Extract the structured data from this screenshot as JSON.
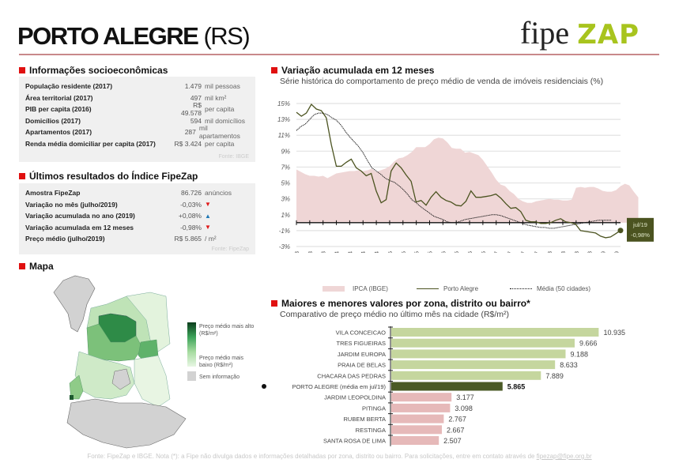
{
  "header": {
    "city": "PORTO ALEGRE",
    "state": "(RS)",
    "logo_left": "fipe",
    "logo_right": "ZAP"
  },
  "socio": {
    "title": "Informações socioeconômicas",
    "rows": [
      {
        "label": "População residente (2017)",
        "value": "1.479",
        "unit": "mil pessoas"
      },
      {
        "label": "Área territorial (2017)",
        "value": "497",
        "unit": "mil km²"
      },
      {
        "label": "PIB per capita (2016)",
        "value": "R$ 49.578",
        "unit": "per capita"
      },
      {
        "label": "Domicílios (2017)",
        "value": "594",
        "unit": "mil domicílios"
      },
      {
        "label": "Apartamentos (2017)",
        "value": "287",
        "unit": "mil apartamentos"
      },
      {
        "label": "Renda média domiciliar per capita (2017)",
        "value": "R$ 3.424",
        "unit": "per capita"
      }
    ],
    "source": "Fonte: IBGE"
  },
  "index": {
    "title": "Últimos resultados do Índice FipeZap",
    "rows": [
      {
        "label": "Amostra FipeZap",
        "value": "86.726",
        "unit": "anúncios",
        "trend": ""
      },
      {
        "label": "Variação no mês (julho/2019)",
        "value": "-0,03%",
        "unit": "",
        "trend": "down"
      },
      {
        "label": "Variação acumulada no ano (2019)",
        "value": "+0,08%",
        "unit": "",
        "trend": "up"
      },
      {
        "label": "Variação acumulada em 12 meses",
        "value": "-0,98%",
        "unit": "",
        "trend": "down"
      },
      {
        "label": "Preço médio (julho/2019)",
        "value": "R$ 5.865",
        "unit": "/ m²",
        "trend": ""
      }
    ],
    "source": "Fonte: FipeZap",
    "colors": {
      "down": "#e01818",
      "up": "#1f77b4"
    }
  },
  "map": {
    "title": "Mapa",
    "legend_high": "Preço médio mais alto (R$/m²)",
    "legend_low": "Preço médio mais baixo (R$/m²)",
    "legend_none": "Sem informação"
  },
  "line_section": {
    "title": "Variação acumulada em 12 meses",
    "subtitle": "Série histórica do comportamento de preço médio de venda de imóveis residenciais (%)"
  },
  "bar_section": {
    "title": "Maiores e menores valores por zona, distrito ou bairro*",
    "subtitle": "Comparativo de preço médio no último mês na cidade (R$/m²)"
  },
  "footer": {
    "text": "Fonte: FipeZap e IBGE. Nota (*): a Fipe não divulga dados e informações detalhadas por zona, distrito ou bairro. Para solicitações, entre em contato através de ",
    "email": "fipezap@fipe.org.br"
  },
  "chart_data": [
    {
      "type": "line",
      "title": "Variação acumulada em 12 meses",
      "subtitle": "Série histórica do comportamento de preço médio de venda de imóveis residenciais (%)",
      "ylabel": "%",
      "ylim": [
        -3,
        15
      ],
      "yticks": [
        "15%",
        "13%",
        "11%",
        "9%",
        "7%",
        "5%",
        "3%",
        "1%",
        "-1%",
        "-3%"
      ],
      "ytick_values": [
        15,
        13,
        11,
        9,
        7,
        5,
        3,
        1,
        -1,
        -3
      ],
      "xticks": [
        "jun/13",
        "set/13",
        "dez/13",
        "mar/14",
        "jun/14",
        "set/14",
        "dez/14",
        "mar/15",
        "jun/15",
        "set/15",
        "dez/15",
        "mar/16",
        "jun/16",
        "set/16",
        "dez/16",
        "mar/17",
        "jun/17",
        "set/17",
        "dez/17",
        "mar/18",
        "jun/18",
        "set/18",
        "dez/18",
        "mar/19",
        "jun/19"
      ],
      "x_start": "jun/13",
      "x_end": "jul/19",
      "grid": true,
      "legend_position": "bottom",
      "series": [
        {
          "name": "IPCA (IBGE)",
          "kind": "area",
          "color": "#efd6d6",
          "values": [
            6.7,
            6.4,
            6.1,
            5.9,
            5.9,
            5.8,
            5.9,
            5.6,
            5.9,
            6.2,
            6.3,
            6.4,
            6.5,
            6.5,
            6.6,
            6.5,
            6.6,
            6.8,
            6.4,
            6.6,
            6.8,
            7.1,
            7.7,
            8.1,
            8.2,
            8.5,
            8.9,
            9.5,
            9.5,
            9.5,
            9.9,
            10.5,
            10.7,
            10.6,
            10.1,
            9.4,
            9.3,
            9.3,
            8.8,
            8.9,
            8.7,
            8.5,
            7.9,
            7.1,
            6.3,
            5.4,
            4.8,
            4.6,
            4.0,
            3.6,
            3.0,
            2.7,
            2.5,
            2.5,
            2.7,
            2.8,
            2.9,
            3.0,
            2.9,
            2.9,
            2.8,
            2.8,
            2.9,
            4.4,
            4.5,
            4.4,
            4.5,
            4.5,
            4.3,
            4.0,
            3.9,
            3.9,
            4.1,
            4.6,
            4.9,
            4.7,
            3.9,
            3.2
          ],
          "values_note": "monthly, jun/13 onward (approximate)"
        },
        {
          "name": "Porto Alegre",
          "kind": "line",
          "color": "#4b5320",
          "values": [
            13.9,
            13.4,
            13.8,
            14.9,
            14.3,
            14.1,
            13.2,
            9.8,
            7.1,
            7.1,
            7.6,
            8.0,
            6.9,
            6.5,
            5.9,
            6.2,
            4.0,
            2.5,
            2.9,
            6.5,
            7.5,
            6.9,
            6.0,
            5.2,
            2.6,
            2.8,
            2.2,
            3.2,
            3.9,
            3.2,
            2.8,
            2.6,
            2.2,
            2.1,
            2.7,
            4.0,
            3.2,
            3.2,
            3.3,
            3.4,
            3.6,
            3.1,
            2.4,
            1.8,
            1.9,
            1.4,
            0.3,
            0.1,
            0.1,
            -0.1,
            -0.1,
            0.0,
            0.3,
            0.5,
            0.1,
            0.0,
            -0.2,
            -1.0,
            -1.1,
            -1.2,
            -1.3,
            -1.7,
            -1.9,
            -1.8,
            -1.4,
            -0.98
          ],
          "values_note": "monthly, approximate shape; final value jul/19 = -0,98%"
        },
        {
          "name": "Média (50 cidades)",
          "kind": "dotted",
          "color": "#111111",
          "values": [
            11.6,
            12.1,
            12.4,
            13.0,
            13.6,
            13.8,
            13.8,
            13.6,
            13.2,
            12.9,
            12.3,
            11.5,
            10.8,
            10.2,
            9.6,
            8.8,
            7.8,
            6.9,
            6.5,
            6.1,
            5.6,
            5.3,
            5.1,
            4.7,
            4.2,
            3.6,
            2.9,
            2.5,
            2.0,
            1.6,
            1.2,
            0.8,
            0.6,
            0.4,
            0.1,
            0.0,
            0.0,
            0.2,
            0.4,
            0.5,
            0.6,
            0.7,
            0.8,
            0.9,
            1.0,
            1.0,
            0.9,
            0.7,
            0.5,
            0.3,
            0.1,
            -0.1,
            -0.3,
            -0.4,
            -0.5,
            -0.6,
            -0.6,
            -0.7,
            -0.7,
            -0.6,
            -0.5,
            -0.4,
            -0.3,
            -0.2,
            -0.1,
            0.0,
            0.1,
            0.2,
            0.3,
            0.3,
            0.3,
            0.3
          ],
          "values_note": "monthly, approximate shape"
        }
      ],
      "annotation": {
        "label": "jul/19",
        "value": "-0,98%",
        "bg": "#4b5320"
      }
    },
    {
      "type": "bar",
      "orientation": "horizontal",
      "title": "Maiores e menores valores por zona, distrito ou bairro*",
      "subtitle": "Comparativo de preço médio no último mês na cidade (R$/m²)",
      "xlim": [
        0,
        11000
      ],
      "categories": [
        "VILA CONCEICAO",
        "TRES FIGUEIRAS",
        "JARDIM EUROPA",
        "PRAIA DE BELAS",
        "CHACARA DAS PEDRAS",
        "PORTO ALEGRE (média em jul/19)",
        "JARDIM LEOPOLDINA",
        "PITINGA",
        "RUBEM BERTA",
        "RESTINGA",
        "SANTA ROSA DE LIMA"
      ],
      "values": [
        10935,
        9666,
        9188,
        8633,
        7889,
        5865,
        3177,
        3098,
        2767,
        2667,
        2507
      ],
      "labels": [
        "10.935",
        "9.666",
        "9.188",
        "8.633",
        "7.889",
        "5.865",
        "3.177",
        "3.098",
        "2.767",
        "2.667",
        "2.507"
      ],
      "groups": [
        "high",
        "high",
        "high",
        "high",
        "high",
        "city",
        "low",
        "low",
        "low",
        "low",
        "low"
      ],
      "colors": {
        "high": "#c5d69e",
        "city": "#4b5a26",
        "low": "#e6b9b9"
      }
    }
  ]
}
